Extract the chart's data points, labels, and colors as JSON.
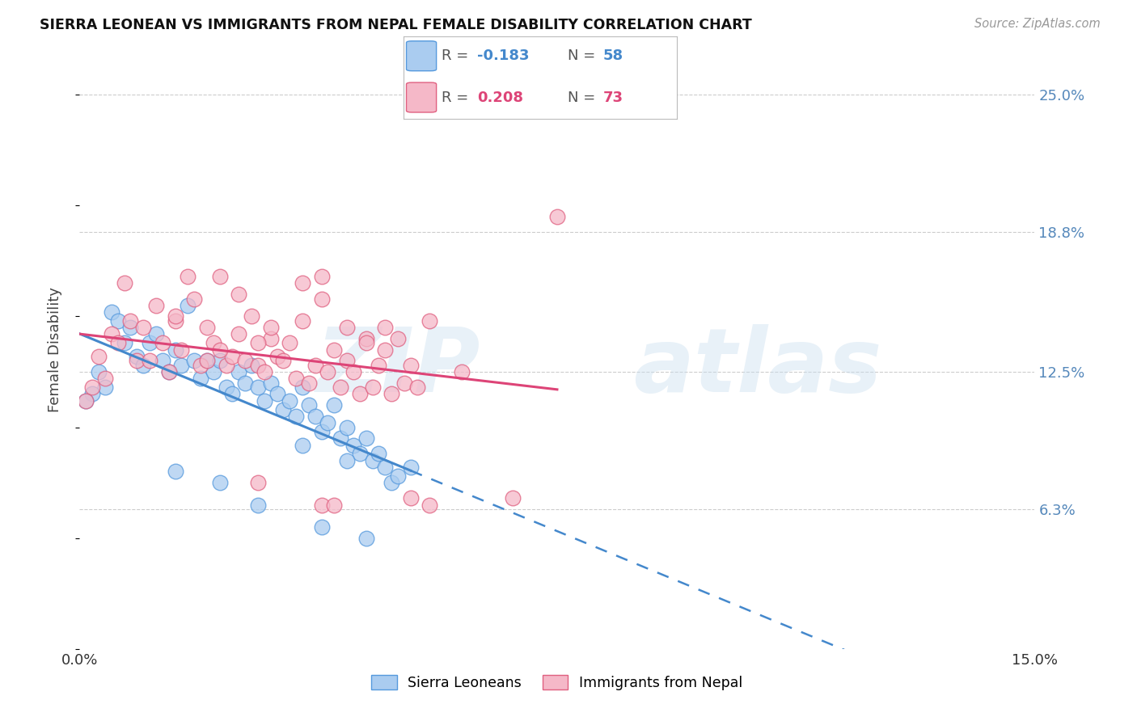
{
  "title": "SIERRA LEONEAN VS IMMIGRANTS FROM NEPAL FEMALE DISABILITY CORRELATION CHART",
  "source": "Source: ZipAtlas.com",
  "ylabel": "Female Disability",
  "ytick_labels": [
    "25.0%",
    "18.8%",
    "12.5%",
    "6.3%"
  ],
  "ytick_values": [
    0.25,
    0.188,
    0.125,
    0.063
  ],
  "xmin": 0.0,
  "xmax": 0.15,
  "ymin": 0.0,
  "ymax": 0.27,
  "series1_label": "Sierra Leoneans",
  "series1_R": "-0.183",
  "series1_N": "58",
  "series1_color": "#aaccf0",
  "series1_edge_color": "#5599dd",
  "series1_line_color": "#4488cc",
  "series2_label": "Immigrants from Nepal",
  "series2_R": "0.208",
  "series2_N": "73",
  "series2_color": "#f5b8c8",
  "series2_edge_color": "#e06080",
  "series2_line_color": "#dd4477",
  "background_color": "#ffffff",
  "grid_color": "#cccccc",
  "right_tick_color": "#5588bb",
  "series1_x": [
    0.005,
    0.006,
    0.007,
    0.008,
    0.009,
    0.01,
    0.011,
    0.012,
    0.013,
    0.014,
    0.015,
    0.016,
    0.017,
    0.018,
    0.019,
    0.02,
    0.021,
    0.022,
    0.023,
    0.024,
    0.025,
    0.026,
    0.027,
    0.028,
    0.029,
    0.03,
    0.031,
    0.032,
    0.033,
    0.034,
    0.035,
    0.036,
    0.037,
    0.038,
    0.039,
    0.04,
    0.041,
    0.042,
    0.043,
    0.044,
    0.045,
    0.046,
    0.047,
    0.048,
    0.049,
    0.05,
    0.003,
    0.004,
    0.002,
    0.001,
    0.028,
    0.035,
    0.042,
    0.015,
    0.022,
    0.038,
    0.045,
    0.052
  ],
  "series1_y": [
    0.152,
    0.148,
    0.138,
    0.145,
    0.132,
    0.128,
    0.138,
    0.142,
    0.13,
    0.125,
    0.135,
    0.128,
    0.155,
    0.13,
    0.122,
    0.13,
    0.125,
    0.13,
    0.118,
    0.115,
    0.125,
    0.12,
    0.128,
    0.118,
    0.112,
    0.12,
    0.115,
    0.108,
    0.112,
    0.105,
    0.118,
    0.11,
    0.105,
    0.098,
    0.102,
    0.11,
    0.095,
    0.1,
    0.092,
    0.088,
    0.095,
    0.085,
    0.088,
    0.082,
    0.075,
    0.078,
    0.125,
    0.118,
    0.115,
    0.112,
    0.065,
    0.092,
    0.085,
    0.08,
    0.075,
    0.055,
    0.05,
    0.082
  ],
  "series2_x": [
    0.005,
    0.006,
    0.007,
    0.008,
    0.009,
    0.01,
    0.011,
    0.012,
    0.013,
    0.014,
    0.015,
    0.016,
    0.017,
    0.018,
    0.019,
    0.02,
    0.021,
    0.022,
    0.023,
    0.024,
    0.025,
    0.026,
    0.027,
    0.028,
    0.029,
    0.03,
    0.031,
    0.032,
    0.033,
    0.034,
    0.035,
    0.036,
    0.037,
    0.038,
    0.039,
    0.04,
    0.041,
    0.042,
    0.043,
    0.044,
    0.045,
    0.046,
    0.047,
    0.048,
    0.049,
    0.05,
    0.051,
    0.052,
    0.053,
    0.003,
    0.004,
    0.002,
    0.001,
    0.035,
    0.042,
    0.055,
    0.06,
    0.048,
    0.02,
    0.025,
    0.03,
    0.038,
    0.045,
    0.015,
    0.022,
    0.028,
    0.075,
    0.038,
    0.055,
    0.068,
    0.028,
    0.04,
    0.052
  ],
  "series2_y": [
    0.142,
    0.138,
    0.165,
    0.148,
    0.13,
    0.145,
    0.13,
    0.155,
    0.138,
    0.125,
    0.148,
    0.135,
    0.168,
    0.158,
    0.128,
    0.145,
    0.138,
    0.168,
    0.128,
    0.132,
    0.142,
    0.13,
    0.15,
    0.128,
    0.125,
    0.14,
    0.132,
    0.13,
    0.138,
    0.122,
    0.148,
    0.12,
    0.128,
    0.168,
    0.125,
    0.135,
    0.118,
    0.13,
    0.125,
    0.115,
    0.14,
    0.118,
    0.128,
    0.135,
    0.115,
    0.14,
    0.12,
    0.128,
    0.118,
    0.132,
    0.122,
    0.118,
    0.112,
    0.165,
    0.145,
    0.148,
    0.125,
    0.145,
    0.13,
    0.16,
    0.145,
    0.158,
    0.138,
    0.15,
    0.135,
    0.138,
    0.195,
    0.065,
    0.065,
    0.068,
    0.075,
    0.065,
    0.068
  ]
}
